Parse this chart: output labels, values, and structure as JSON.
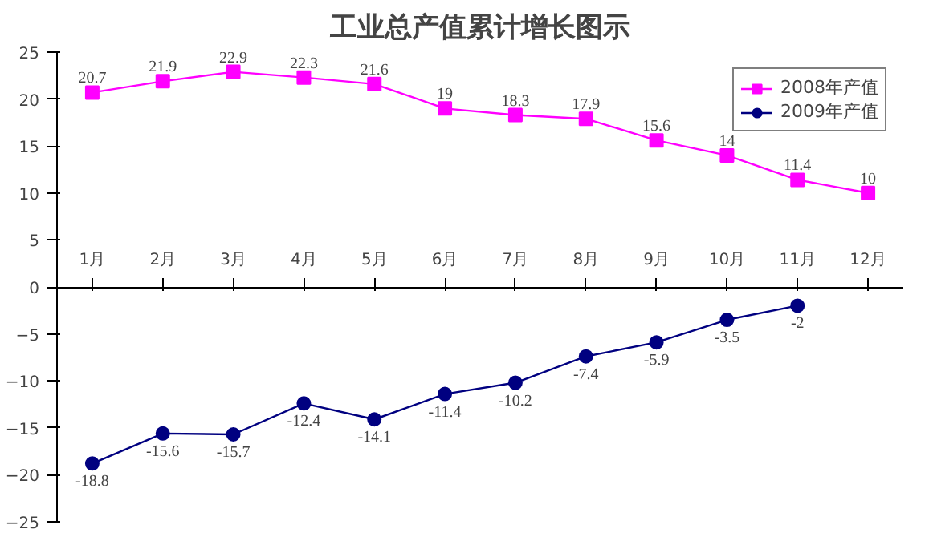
{
  "chart_data": {
    "type": "line",
    "title": "工业总产值累计增长图示",
    "categories": [
      "1月",
      "2月",
      "3月",
      "4月",
      "5月",
      "6月",
      "7月",
      "8月",
      "9月",
      "10月",
      "11月",
      "12月"
    ],
    "series": [
      {
        "name": "2008年产值",
        "color": "#ff00ff",
        "marker": "square",
        "values": [
          20.7,
          21.9,
          22.9,
          22.3,
          21.6,
          19,
          18.3,
          17.9,
          15.6,
          14,
          11.4,
          10
        ]
      },
      {
        "name": "2009年产值",
        "color": "#000080",
        "marker": "circle",
        "values": [
          -18.8,
          -15.6,
          -15.7,
          -12.4,
          -14.1,
          -11.4,
          -10.2,
          -7.4,
          -5.9,
          -3.5,
          -2,
          null
        ]
      }
    ],
    "ylim": [
      -25,
      25
    ],
    "yticks": [
      -25,
      -20,
      -15,
      -10,
      -5,
      0,
      5,
      10,
      15,
      20,
      25
    ],
    "data_labels": true,
    "legend": "top right",
    "grid": false
  }
}
